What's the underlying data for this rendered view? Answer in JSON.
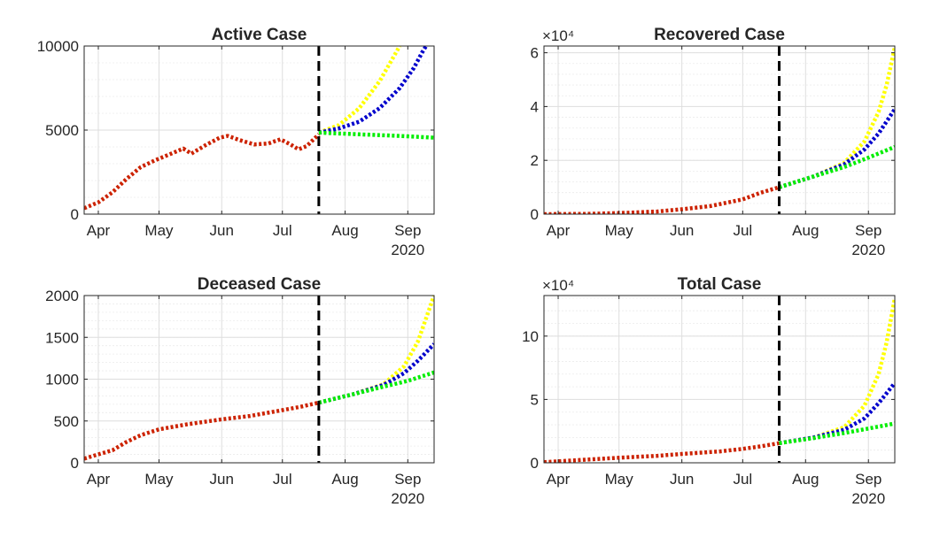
{
  "chart_data": [
    {
      "type": "line",
      "title": "Active Case",
      "x_tick_labels": [
        "Apr",
        "May",
        "Jun",
        "Jul",
        "Aug",
        "Sep"
      ],
      "x_tick_dates": [
        "2020-04-01",
        "2020-05-01",
        "2020-06-01",
        "2020-07-01",
        "2020-08-01",
        "2020-09-01"
      ],
      "xlim": [
        "2020-03-25",
        "2020-09-14"
      ],
      "x_year_label": "2020",
      "y_ticks": [
        0,
        5000,
        10000
      ],
      "y_tick_labels": [
        "0",
        "5000",
        "10000"
      ],
      "ylim": [
        0,
        10000
      ],
      "y_multiplier": "",
      "grid": true,
      "vline_date": "2020-07-19",
      "series": [
        {
          "color": "#cc2200",
          "style": "dotted",
          "points": [
            [
              "2020-03-25",
              350
            ],
            [
              "2020-04-01",
              700
            ],
            [
              "2020-04-08",
              1300
            ],
            [
              "2020-04-15",
              2100
            ],
            [
              "2020-04-22",
              2800
            ],
            [
              "2020-04-29",
              3200
            ],
            [
              "2020-05-06",
              3550
            ],
            [
              "2020-05-13",
              3900
            ],
            [
              "2020-05-17",
              3600
            ],
            [
              "2020-05-24",
              4100
            ],
            [
              "2020-05-31",
              4550
            ],
            [
              "2020-06-04",
              4650
            ],
            [
              "2020-06-10",
              4400
            ],
            [
              "2020-06-17",
              4150
            ],
            [
              "2020-06-24",
              4200
            ],
            [
              "2020-06-30",
              4450
            ],
            [
              "2020-07-05",
              4150
            ],
            [
              "2020-07-09",
              3850
            ],
            [
              "2020-07-13",
              4050
            ],
            [
              "2020-07-19",
              4750
            ]
          ]
        },
        {
          "color": "#ffff00",
          "style": "dotted",
          "points": [
            [
              "2020-07-19",
              4850
            ],
            [
              "2020-07-29",
              5300
            ],
            [
              "2020-08-08",
              6300
            ],
            [
              "2020-08-18",
              7900
            ],
            [
              "2020-08-28",
              10000
            ]
          ]
        },
        {
          "color": "#0000cc",
          "style": "dotted",
          "points": [
            [
              "2020-07-19",
              4850
            ],
            [
              "2020-07-29",
              5100
            ],
            [
              "2020-08-08",
              5500
            ],
            [
              "2020-08-18",
              6300
            ],
            [
              "2020-08-28",
              7500
            ],
            [
              "2020-09-04",
              8700
            ],
            [
              "2020-09-08",
              9600
            ],
            [
              "2020-09-10",
              10000
            ]
          ]
        },
        {
          "color": "#00ee00",
          "style": "dotted",
          "points": [
            [
              "2020-07-19",
              4850
            ],
            [
              "2020-08-08",
              4750
            ],
            [
              "2020-08-28",
              4650
            ],
            [
              "2020-09-14",
              4550
            ]
          ]
        }
      ]
    },
    {
      "type": "line",
      "title": "Recovered Case",
      "x_tick_labels": [
        "Apr",
        "May",
        "Jun",
        "Jul",
        "Aug",
        "Sep"
      ],
      "x_tick_dates": [
        "2020-04-01",
        "2020-05-01",
        "2020-06-01",
        "2020-07-01",
        "2020-08-01",
        "2020-09-01"
      ],
      "xlim": [
        "2020-03-25",
        "2020-09-14"
      ],
      "x_year_label": "2020",
      "y_ticks": [
        0,
        20000,
        40000,
        60000
      ],
      "y_tick_labels": [
        "0",
        "2",
        "4",
        "6"
      ],
      "ylim": [
        0,
        62500
      ],
      "y_multiplier": "×10⁴",
      "grid": true,
      "vline_date": "2020-07-19",
      "series": [
        {
          "color": "#cc2200",
          "style": "dotted",
          "points": [
            [
              "2020-03-25",
              0
            ],
            [
              "2020-04-15",
              100
            ],
            [
              "2020-05-01",
              400
            ],
            [
              "2020-05-20",
              1000
            ],
            [
              "2020-06-01",
              1800
            ],
            [
              "2020-06-15",
              3000
            ],
            [
              "2020-07-01",
              5500
            ],
            [
              "2020-07-10",
              8000
            ],
            [
              "2020-07-19",
              10000
            ]
          ]
        },
        {
          "color": "#ffff00",
          "style": "dotted",
          "points": [
            [
              "2020-07-19",
              10000
            ],
            [
              "2020-08-05",
              14000
            ],
            [
              "2020-08-20",
              19000
            ],
            [
              "2020-08-30",
              27000
            ],
            [
              "2020-09-06",
              38000
            ],
            [
              "2020-09-10",
              48000
            ],
            [
              "2020-09-14",
              62000
            ]
          ]
        },
        {
          "color": "#0000cc",
          "style": "dotted",
          "points": [
            [
              "2020-07-19",
              10000
            ],
            [
              "2020-08-05",
              14000
            ],
            [
              "2020-08-20",
              18500
            ],
            [
              "2020-08-30",
              24000
            ],
            [
              "2020-09-06",
              30000
            ],
            [
              "2020-09-14",
              39000
            ]
          ]
        },
        {
          "color": "#00ee00",
          "style": "dotted",
          "points": [
            [
              "2020-07-19",
              10000
            ],
            [
              "2020-08-05",
              14000
            ],
            [
              "2020-08-20",
              17500
            ],
            [
              "2020-09-01",
              21000
            ],
            [
              "2020-09-14",
              25000
            ]
          ]
        }
      ]
    },
    {
      "type": "line",
      "title": "Deceased Case",
      "x_tick_labels": [
        "Apr",
        "May",
        "Jun",
        "Jul",
        "Aug",
        "Sep"
      ],
      "x_tick_dates": [
        "2020-04-01",
        "2020-05-01",
        "2020-06-01",
        "2020-07-01",
        "2020-08-01",
        "2020-09-01"
      ],
      "xlim": [
        "2020-03-25",
        "2020-09-14"
      ],
      "x_year_label": "2020",
      "y_ticks": [
        0,
        500,
        1000,
        1500,
        2000
      ],
      "y_tick_labels": [
        "0",
        "500",
        "1000",
        "1500",
        "2000"
      ],
      "ylim": [
        0,
        2000
      ],
      "y_multiplier": "",
      "grid": true,
      "vline_date": "2020-07-19",
      "series": [
        {
          "color": "#cc2200",
          "style": "dotted",
          "points": [
            [
              "2020-03-25",
              50
            ],
            [
              "2020-04-01",
              100
            ],
            [
              "2020-04-08",
              150
            ],
            [
              "2020-04-15",
              250
            ],
            [
              "2020-04-22",
              330
            ],
            [
              "2020-05-01",
              400
            ],
            [
              "2020-05-15",
              460
            ],
            [
              "2020-06-01",
              520
            ],
            [
              "2020-06-15",
              560
            ],
            [
              "2020-07-01",
              630
            ],
            [
              "2020-07-10",
              670
            ],
            [
              "2020-07-19",
              720
            ]
          ]
        },
        {
          "color": "#ffff00",
          "style": "dotted",
          "points": [
            [
              "2020-07-19",
              720
            ],
            [
              "2020-08-05",
              820
            ],
            [
              "2020-08-20",
              940
            ],
            [
              "2020-08-30",
              1150
            ],
            [
              "2020-09-06",
              1450
            ],
            [
              "2020-09-14",
              2000
            ]
          ]
        },
        {
          "color": "#0000cc",
          "style": "dotted",
          "points": [
            [
              "2020-07-19",
              720
            ],
            [
              "2020-08-05",
              820
            ],
            [
              "2020-08-20",
              930
            ],
            [
              "2020-08-30",
              1070
            ],
            [
              "2020-09-06",
              1220
            ],
            [
              "2020-09-14",
              1420
            ]
          ]
        },
        {
          "color": "#00ee00",
          "style": "dotted",
          "points": [
            [
              "2020-07-19",
              720
            ],
            [
              "2020-08-05",
              820
            ],
            [
              "2020-08-20",
              910
            ],
            [
              "2020-09-01",
              980
            ],
            [
              "2020-09-14",
              1080
            ]
          ]
        }
      ]
    },
    {
      "type": "line",
      "title": "Total Case",
      "x_tick_labels": [
        "Apr",
        "May",
        "Jun",
        "Jul",
        "Aug",
        "Sep"
      ],
      "x_tick_dates": [
        "2020-04-01",
        "2020-05-01",
        "2020-06-01",
        "2020-07-01",
        "2020-08-01",
        "2020-09-01"
      ],
      "xlim": [
        "2020-03-25",
        "2020-09-14"
      ],
      "x_year_label": "2020",
      "y_ticks": [
        0,
        50000,
        100000
      ],
      "y_tick_labels": [
        "0",
        "5",
        "10"
      ],
      "ylim": [
        0,
        132000
      ],
      "y_multiplier": "×10⁴",
      "grid": true,
      "vline_date": "2020-07-19",
      "series": [
        {
          "color": "#cc2200",
          "style": "dotted",
          "points": [
            [
              "2020-03-25",
              500
            ],
            [
              "2020-04-15",
              2500
            ],
            [
              "2020-05-01",
              4000
            ],
            [
              "2020-05-20",
              5500
            ],
            [
              "2020-06-01",
              7000
            ],
            [
              "2020-06-20",
              9000
            ],
            [
              "2020-07-01",
              11000
            ],
            [
              "2020-07-10",
              13000
            ],
            [
              "2020-07-19",
              15500
            ]
          ]
        },
        {
          "color": "#ffff00",
          "style": "dotted",
          "points": [
            [
              "2020-07-19",
              15500
            ],
            [
              "2020-08-05",
              20000
            ],
            [
              "2020-08-20",
              28000
            ],
            [
              "2020-08-30",
              45000
            ],
            [
              "2020-09-06",
              70000
            ],
            [
              "2020-09-10",
              95000
            ],
            [
              "2020-09-14",
              130000
            ]
          ]
        },
        {
          "color": "#0000cc",
          "style": "dotted",
          "points": [
            [
              "2020-07-19",
              15500
            ],
            [
              "2020-08-05",
              20000
            ],
            [
              "2020-08-20",
              26000
            ],
            [
              "2020-08-30",
              35000
            ],
            [
              "2020-09-06",
              47000
            ],
            [
              "2020-09-14",
              63000
            ]
          ]
        },
        {
          "color": "#00ee00",
          "style": "dotted",
          "points": [
            [
              "2020-07-19",
              15500
            ],
            [
              "2020-08-05",
              19500
            ],
            [
              "2020-08-20",
              23500
            ],
            [
              "2020-09-01",
              27000
            ],
            [
              "2020-09-14",
              31000
            ]
          ]
        }
      ]
    }
  ]
}
